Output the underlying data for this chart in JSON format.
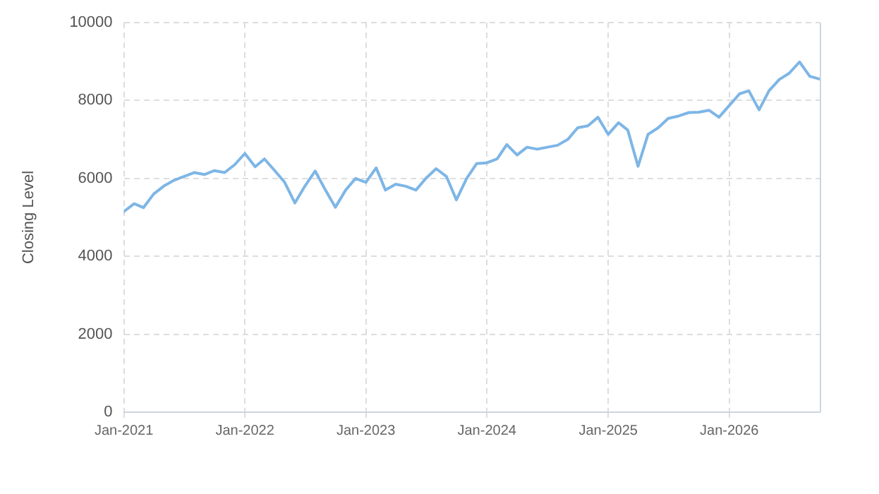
{
  "chart_data": {
    "type": "line",
    "ylabel": "Closing Level",
    "x": [
      "2021-01",
      "2021-02",
      "2021-03",
      "2021-04",
      "2021-05",
      "2021-06",
      "2021-07",
      "2021-08",
      "2021-09",
      "2021-10",
      "2021-11",
      "2021-12",
      "2022-01",
      "2022-02",
      "2022-03",
      "2022-04",
      "2022-05",
      "2022-06",
      "2022-07",
      "2022-08",
      "2022-09",
      "2022-10",
      "2022-11",
      "2022-12",
      "2023-01",
      "2023-02",
      "2023-03",
      "2023-04",
      "2023-05",
      "2023-06",
      "2023-07",
      "2023-08",
      "2023-09",
      "2023-10",
      "2023-11",
      "2023-12",
      "2024-01",
      "2024-02",
      "2024-03",
      "2024-04",
      "2024-05",
      "2024-06",
      "2024-07",
      "2024-08",
      "2024-09",
      "2024-10",
      "2024-11",
      "2024-12",
      "2025-01",
      "2025-02",
      "2025-03",
      "2025-04",
      "2025-05",
      "2025-06",
      "2025-07",
      "2025-08",
      "2025-09",
      "2025-10",
      "2025-11",
      "2025-12",
      "2026-01",
      "2026-02",
      "2026-03",
      "2026-04",
      "2026-05",
      "2026-06",
      "2026-07",
      "2026-08",
      "2026-09",
      "2026-10"
    ],
    "series": [
      {
        "color": "#7eb6e6",
        "values": [
          5150,
          5350,
          5250,
          5600,
          5800,
          5950,
          6050,
          6150,
          6100,
          6200,
          6150,
          6350,
          6640,
          6300,
          6500,
          6200,
          5900,
          5370,
          5800,
          6190,
          5700,
          5260,
          5700,
          6000,
          5900,
          6270,
          5700,
          5850,
          5800,
          5700,
          6000,
          6250,
          6050,
          5450,
          6000,
          6380,
          6400,
          6500,
          6870,
          6600,
          6800,
          6750,
          6800,
          6850,
          7000,
          7300,
          7350,
          7570,
          7130,
          7430,
          7240,
          6310,
          7130,
          7300,
          7540,
          7600,
          7690,
          7700,
          7750,
          7570,
          7870,
          8170,
          8250,
          7760,
          8250,
          8540,
          8700,
          8990,
          8620,
          8550
        ]
      }
    ],
    "xlim": [
      "2021-01",
      "2026-10"
    ],
    "xticks": [
      {
        "value": "2021-01",
        "label": "Jan-2021"
      },
      {
        "value": "2022-01",
        "label": "Jan-2022"
      },
      {
        "value": "2023-01",
        "label": "Jan-2023"
      },
      {
        "value": "2024-01",
        "label": "Jan-2024"
      },
      {
        "value": "2025-01",
        "label": "Jan-2025"
      },
      {
        "value": "2026-01",
        "label": "Jan-2026"
      }
    ],
    "ylim": [
      0,
      10000
    ],
    "yticks": [
      0,
      2000,
      4000,
      6000,
      8000,
      10000
    ],
    "grid": true,
    "legend": false,
    "marker": "none",
    "line_style": "solid"
  }
}
